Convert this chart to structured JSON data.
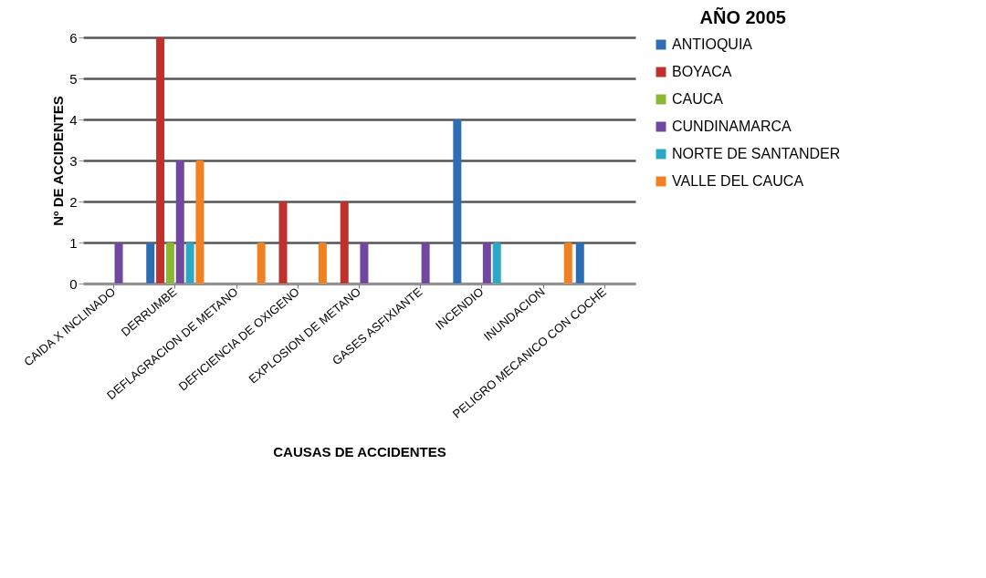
{
  "chart_data": {
    "type": "bar",
    "title": "AÑO 2005",
    "xlabel": "CAUSAS DE ACCIDENTES",
    "ylabel": "Nº DE ACCIDENTES",
    "categories": [
      "CAIDA X  INCLINADO",
      "DERRUMBE",
      "DEFLAGRACION DE METANO",
      "DEFICIENCIA  DE OXIGENO",
      "EXPLOSION DE METANO",
      "GASES ASFIXIANTE",
      "INCENDIO",
      "INUNDACION",
      "PELIGRO MECANICO  CON COCHE"
    ],
    "series": [
      {
        "name": "ANTIOQUIA",
        "color": "#2e6db4",
        "values": [
          null,
          1,
          null,
          null,
          null,
          null,
          4,
          null,
          1
        ]
      },
      {
        "name": "BOYACA",
        "color": "#c0302d",
        "values": [
          null,
          6,
          null,
          2,
          2,
          null,
          null,
          null,
          null
        ]
      },
      {
        "name": "CAUCA",
        "color": "#8ab833",
        "values": [
          null,
          1,
          null,
          null,
          null,
          null,
          null,
          null,
          null
        ]
      },
      {
        "name": "CUNDINAMARCA",
        "color": "#7048a0",
        "values": [
          1,
          3,
          null,
          null,
          1,
          1,
          1,
          null,
          null
        ]
      },
      {
        "name": "NORTE DE SANTANDER",
        "color": "#2aa8c4",
        "values": [
          null,
          1,
          null,
          null,
          null,
          null,
          1,
          null,
          null
        ]
      },
      {
        "name": "VALLE DEL CAUCA",
        "color": "#f08020",
        "values": [
          null,
          3,
          1,
          1,
          null,
          null,
          null,
          1,
          null
        ]
      }
    ],
    "ylim": [
      0,
      6
    ],
    "yticks": [
      0,
      1,
      2,
      3,
      4,
      5,
      6
    ],
    "grid": "y",
    "legend": "right"
  }
}
